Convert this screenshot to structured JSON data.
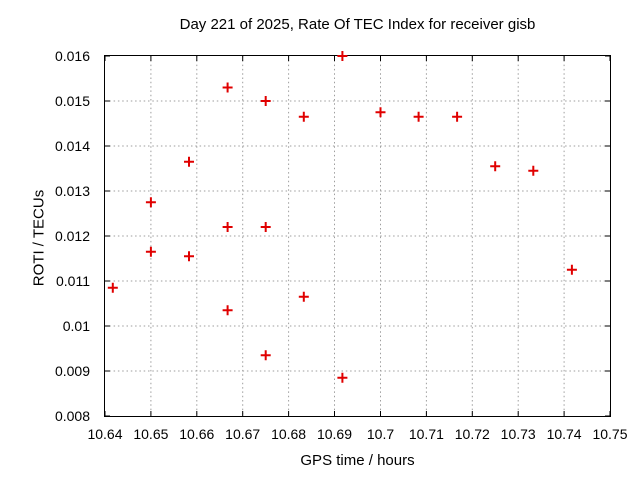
{
  "chart_data": {
    "type": "scatter",
    "title": "Day 221 of 2025, Rate Of TEC Index for receiver gisb",
    "xlabel": "GPS time / hours",
    "ylabel": "ROTI / TECUs",
    "xlim": [
      10.64,
      10.75
    ],
    "ylim": [
      0.008,
      0.016
    ],
    "xtick_values": [
      10.64,
      10.65,
      10.66,
      10.67,
      10.68,
      10.69,
      10.7,
      10.71,
      10.72,
      10.73,
      10.74,
      10.75
    ],
    "xtick_labels": [
      "10.64",
      "10.65",
      "10.66",
      "10.67",
      "10.68",
      "10.69",
      "10.7",
      "10.71",
      "10.72",
      "10.73",
      "10.74",
      "10.75"
    ],
    "ytick_values": [
      0.008,
      0.009,
      0.01,
      0.011,
      0.012,
      0.013,
      0.014,
      0.015,
      0.016
    ],
    "ytick_labels": [
      "0.008",
      "0.009",
      "0.01",
      "0.011",
      "0.012",
      "0.013",
      "0.014",
      "0.015",
      "0.016"
    ],
    "grid": true,
    "legend": false,
    "marker": "plus",
    "marker_color": "#e00000",
    "grid_color": "#9e9e9e",
    "axis_color": "#000000",
    "background_color": "#ffffff",
    "points": [
      [
        10.6417,
        0.01085
      ],
      [
        10.65,
        0.01275
      ],
      [
        10.65,
        0.01165
      ],
      [
        10.6583,
        0.01365
      ],
      [
        10.6583,
        0.01155
      ],
      [
        10.6667,
        0.0153
      ],
      [
        10.6667,
        0.0122
      ],
      [
        10.6667,
        0.01035
      ],
      [
        10.675,
        0.015
      ],
      [
        10.675,
        0.0122
      ],
      [
        10.675,
        0.00935
      ],
      [
        10.6833,
        0.01465
      ],
      [
        10.6833,
        0.01065
      ],
      [
        10.6917,
        0.016
      ],
      [
        10.6917,
        0.00885
      ],
      [
        10.7,
        0.01475
      ],
      [
        10.7083,
        0.01465
      ],
      [
        10.7167,
        0.01465
      ],
      [
        10.725,
        0.01355
      ],
      [
        10.7333,
        0.01345
      ],
      [
        10.7417,
        0.01125
      ]
    ]
  }
}
